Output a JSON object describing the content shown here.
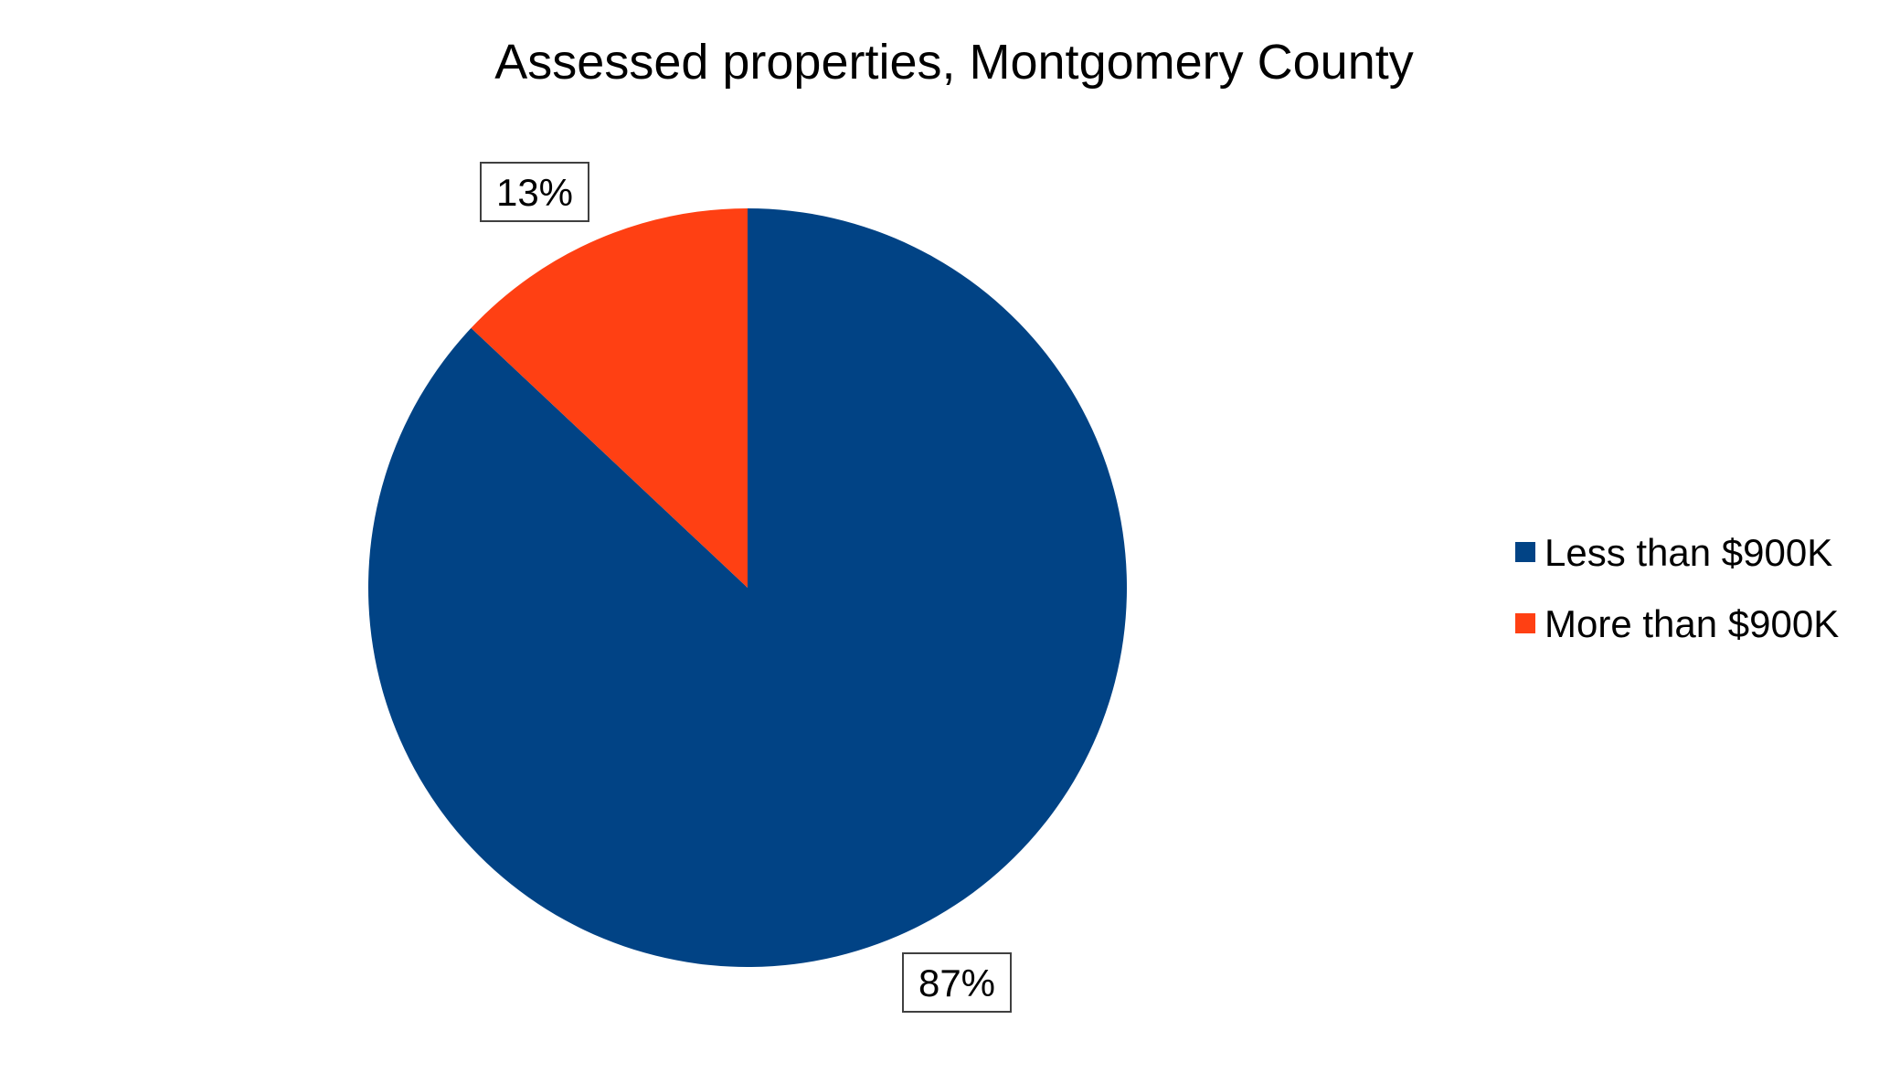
{
  "chart_data": {
    "type": "pie",
    "title": "Assessed properties, Montgomery County",
    "categories": [
      "Less than $900K",
      "More than $900K"
    ],
    "values": [
      87,
      13
    ],
    "data_labels": [
      "87%",
      "13%"
    ],
    "colors": [
      "#014385",
      "#FF4013"
    ],
    "start_angle_deg": 0,
    "direction": "clockwise",
    "legend": {
      "position": "right",
      "items": [
        "Less than $900K",
        "More than $900K"
      ]
    },
    "grid": false
  }
}
